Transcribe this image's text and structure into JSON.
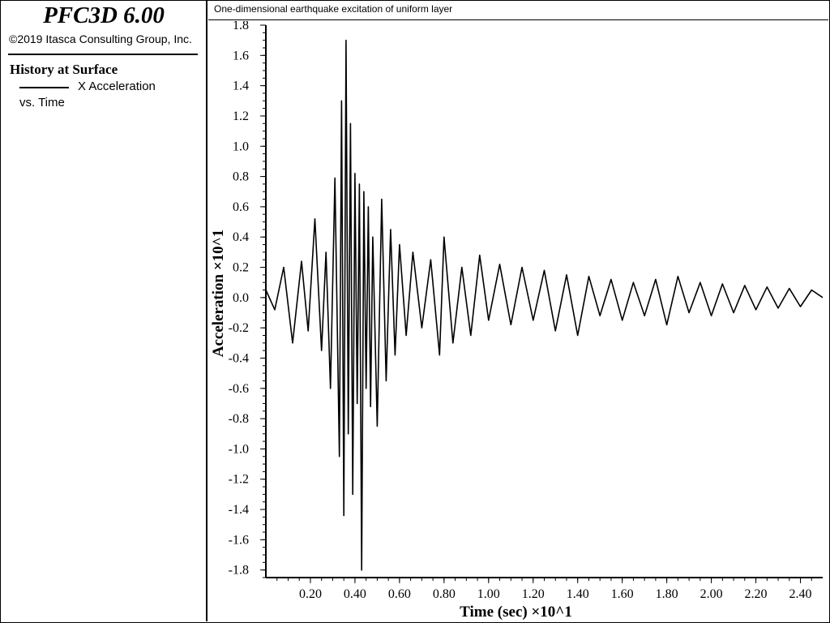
{
  "sidebar": {
    "app_title": "PFC3D 6.00",
    "copyright": "©2019 Itasca Consulting Group, Inc.",
    "history_title": "History at Surface",
    "legend_label": "X Acceleration",
    "vs_label": "vs. Time"
  },
  "plot": {
    "title": "One-dimensional earthquake excitation of uniform layer"
  },
  "chart_data": {
    "type": "line",
    "title": "One-dimensional earthquake excitation of uniform layer",
    "xlabel": "Time (sec) ×10^1",
    "ylabel": "Acceleration ×10^1",
    "xlim": [
      0.0,
      2.5
    ],
    "ylim": [
      -1.85,
      1.8
    ],
    "x_ticks": [
      "0.20",
      "0.40",
      "0.60",
      "0.80",
      "1.00",
      "1.20",
      "1.40",
      "1.60",
      "1.80",
      "2.00",
      "2.20",
      "2.40"
    ],
    "y_ticks": [
      "1.8",
      "1.6",
      "1.4",
      "1.2",
      "1.0",
      "0.8",
      "0.6",
      "0.4",
      "0.2",
      "0.0",
      "-0.2",
      "-0.4",
      "-0.6",
      "-0.8",
      "-1.0",
      "-1.2",
      "-1.4",
      "-1.6",
      "-1.8"
    ],
    "grid": false,
    "series": [
      {
        "name": "X Acceleration",
        "color": "#000000",
        "x": [
          0.0,
          0.04,
          0.08,
          0.12,
          0.16,
          0.19,
          0.22,
          0.25,
          0.27,
          0.29,
          0.31,
          0.33,
          0.34,
          0.35,
          0.36,
          0.37,
          0.38,
          0.39,
          0.4,
          0.41,
          0.42,
          0.43,
          0.44,
          0.45,
          0.46,
          0.47,
          0.48,
          0.5,
          0.52,
          0.54,
          0.56,
          0.58,
          0.6,
          0.63,
          0.66,
          0.7,
          0.74,
          0.78,
          0.8,
          0.84,
          0.88,
          0.92,
          0.96,
          1.0,
          1.05,
          1.1,
          1.15,
          1.2,
          1.25,
          1.3,
          1.35,
          1.4,
          1.45,
          1.5,
          1.55,
          1.6,
          1.65,
          1.7,
          1.75,
          1.8,
          1.85,
          1.9,
          1.95,
          2.0,
          2.05,
          2.1,
          2.15,
          2.2,
          2.25,
          2.3,
          2.35,
          2.4,
          2.45,
          2.5
        ],
        "y": [
          0.05,
          -0.08,
          0.2,
          -0.3,
          0.24,
          -0.22,
          0.52,
          -0.35,
          0.3,
          -0.6,
          0.79,
          -1.05,
          1.3,
          -1.44,
          1.7,
          -0.9,
          1.15,
          -1.3,
          0.82,
          -0.7,
          0.75,
          -1.8,
          0.7,
          -0.6,
          0.6,
          -0.72,
          0.4,
          -0.85,
          0.65,
          -0.55,
          0.45,
          -0.38,
          0.35,
          -0.25,
          0.3,
          -0.2,
          0.25,
          -0.38,
          0.4,
          -0.3,
          0.2,
          -0.25,
          0.28,
          -0.15,
          0.22,
          -0.18,
          0.2,
          -0.15,
          0.18,
          -0.22,
          0.15,
          -0.25,
          0.14,
          -0.12,
          0.12,
          -0.15,
          0.1,
          -0.12,
          0.12,
          -0.18,
          0.14,
          -0.1,
          0.1,
          -0.12,
          0.09,
          -0.1,
          0.08,
          -0.08,
          0.07,
          -0.07,
          0.06,
          -0.06,
          0.05,
          0.0
        ]
      }
    ]
  }
}
